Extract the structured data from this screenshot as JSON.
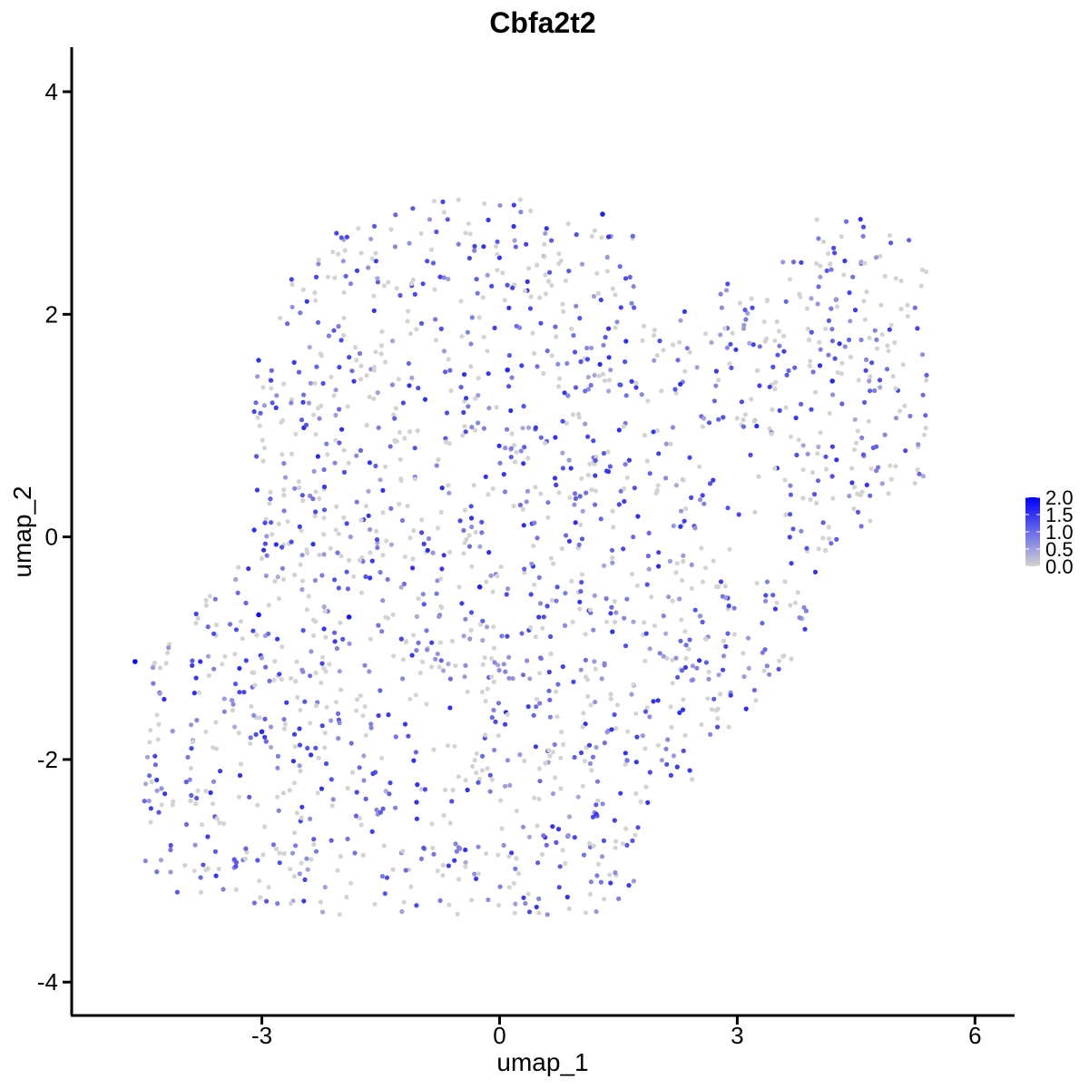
{
  "chart_data": {
    "type": "scatter",
    "title": "Cbfa2t2",
    "xlabel": "umap_1",
    "ylabel": "umap_2",
    "xlim": [
      -5.4,
      6.5
    ],
    "ylim": [
      -4.3,
      4.4
    ],
    "xticks": [
      -3,
      0,
      3,
      6
    ],
    "yticks": [
      -4,
      -2,
      0,
      2,
      4
    ],
    "xtick_labels": [
      "-3",
      "0",
      "3",
      "6"
    ],
    "ytick_labels": [
      "-4",
      "-2",
      "0",
      "2",
      "4"
    ],
    "grid": false,
    "legend": {
      "placement": "right",
      "type": "colorbar",
      "range": [
        0,
        2.0
      ],
      "tick_values": [
        2.0,
        1.5,
        1.0,
        0.5,
        0.0
      ],
      "labels": [
        "2.0",
        "1.5",
        "1.0",
        "0.5",
        "0.0"
      ]
    },
    "colors": {
      "low": "#d3d3d3",
      "high": "#0000ff"
    },
    "highlight_points": [
      {
        "x": -4.6,
        "y": -1.12,
        "value": 2.1
      },
      {
        "x": -3.04,
        "y": -0.7,
        "value": 1.9
      },
      {
        "x": -1.9,
        "y": -0.72,
        "value": 1.8
      },
      {
        "x": -0.25,
        "y": -0.45,
        "value": 1.7
      },
      {
        "x": 1.3,
        "y": 2.9,
        "value": 1.7
      },
      {
        "x": 4.2,
        "y": 1.4,
        "value": 1.6
      },
      {
        "x": -3.0,
        "y": -1.75,
        "value": 1.6
      },
      {
        "x": 0.1,
        "y": 1.5,
        "value": 1.6
      }
    ],
    "point_cloud": {
      "description_regions": [
        {
          "region": "upper-left lobe",
          "x": [
            -3.1,
            1.6
          ],
          "y": [
            -0.2,
            3.1
          ]
        },
        {
          "region": "lower-left lobe",
          "x": [
            -4.5,
            -0.2
          ],
          "y": [
            -3.5,
            -0.2
          ]
        },
        {
          "region": "center band",
          "x": [
            -1.2,
            2.5
          ],
          "y": [
            -3.0,
            1.5
          ]
        },
        {
          "region": "right arm",
          "x": [
            2.0,
            5.4
          ],
          "y": [
            -1.5,
            3.1
          ]
        }
      ],
      "count": 1900
    }
  }
}
